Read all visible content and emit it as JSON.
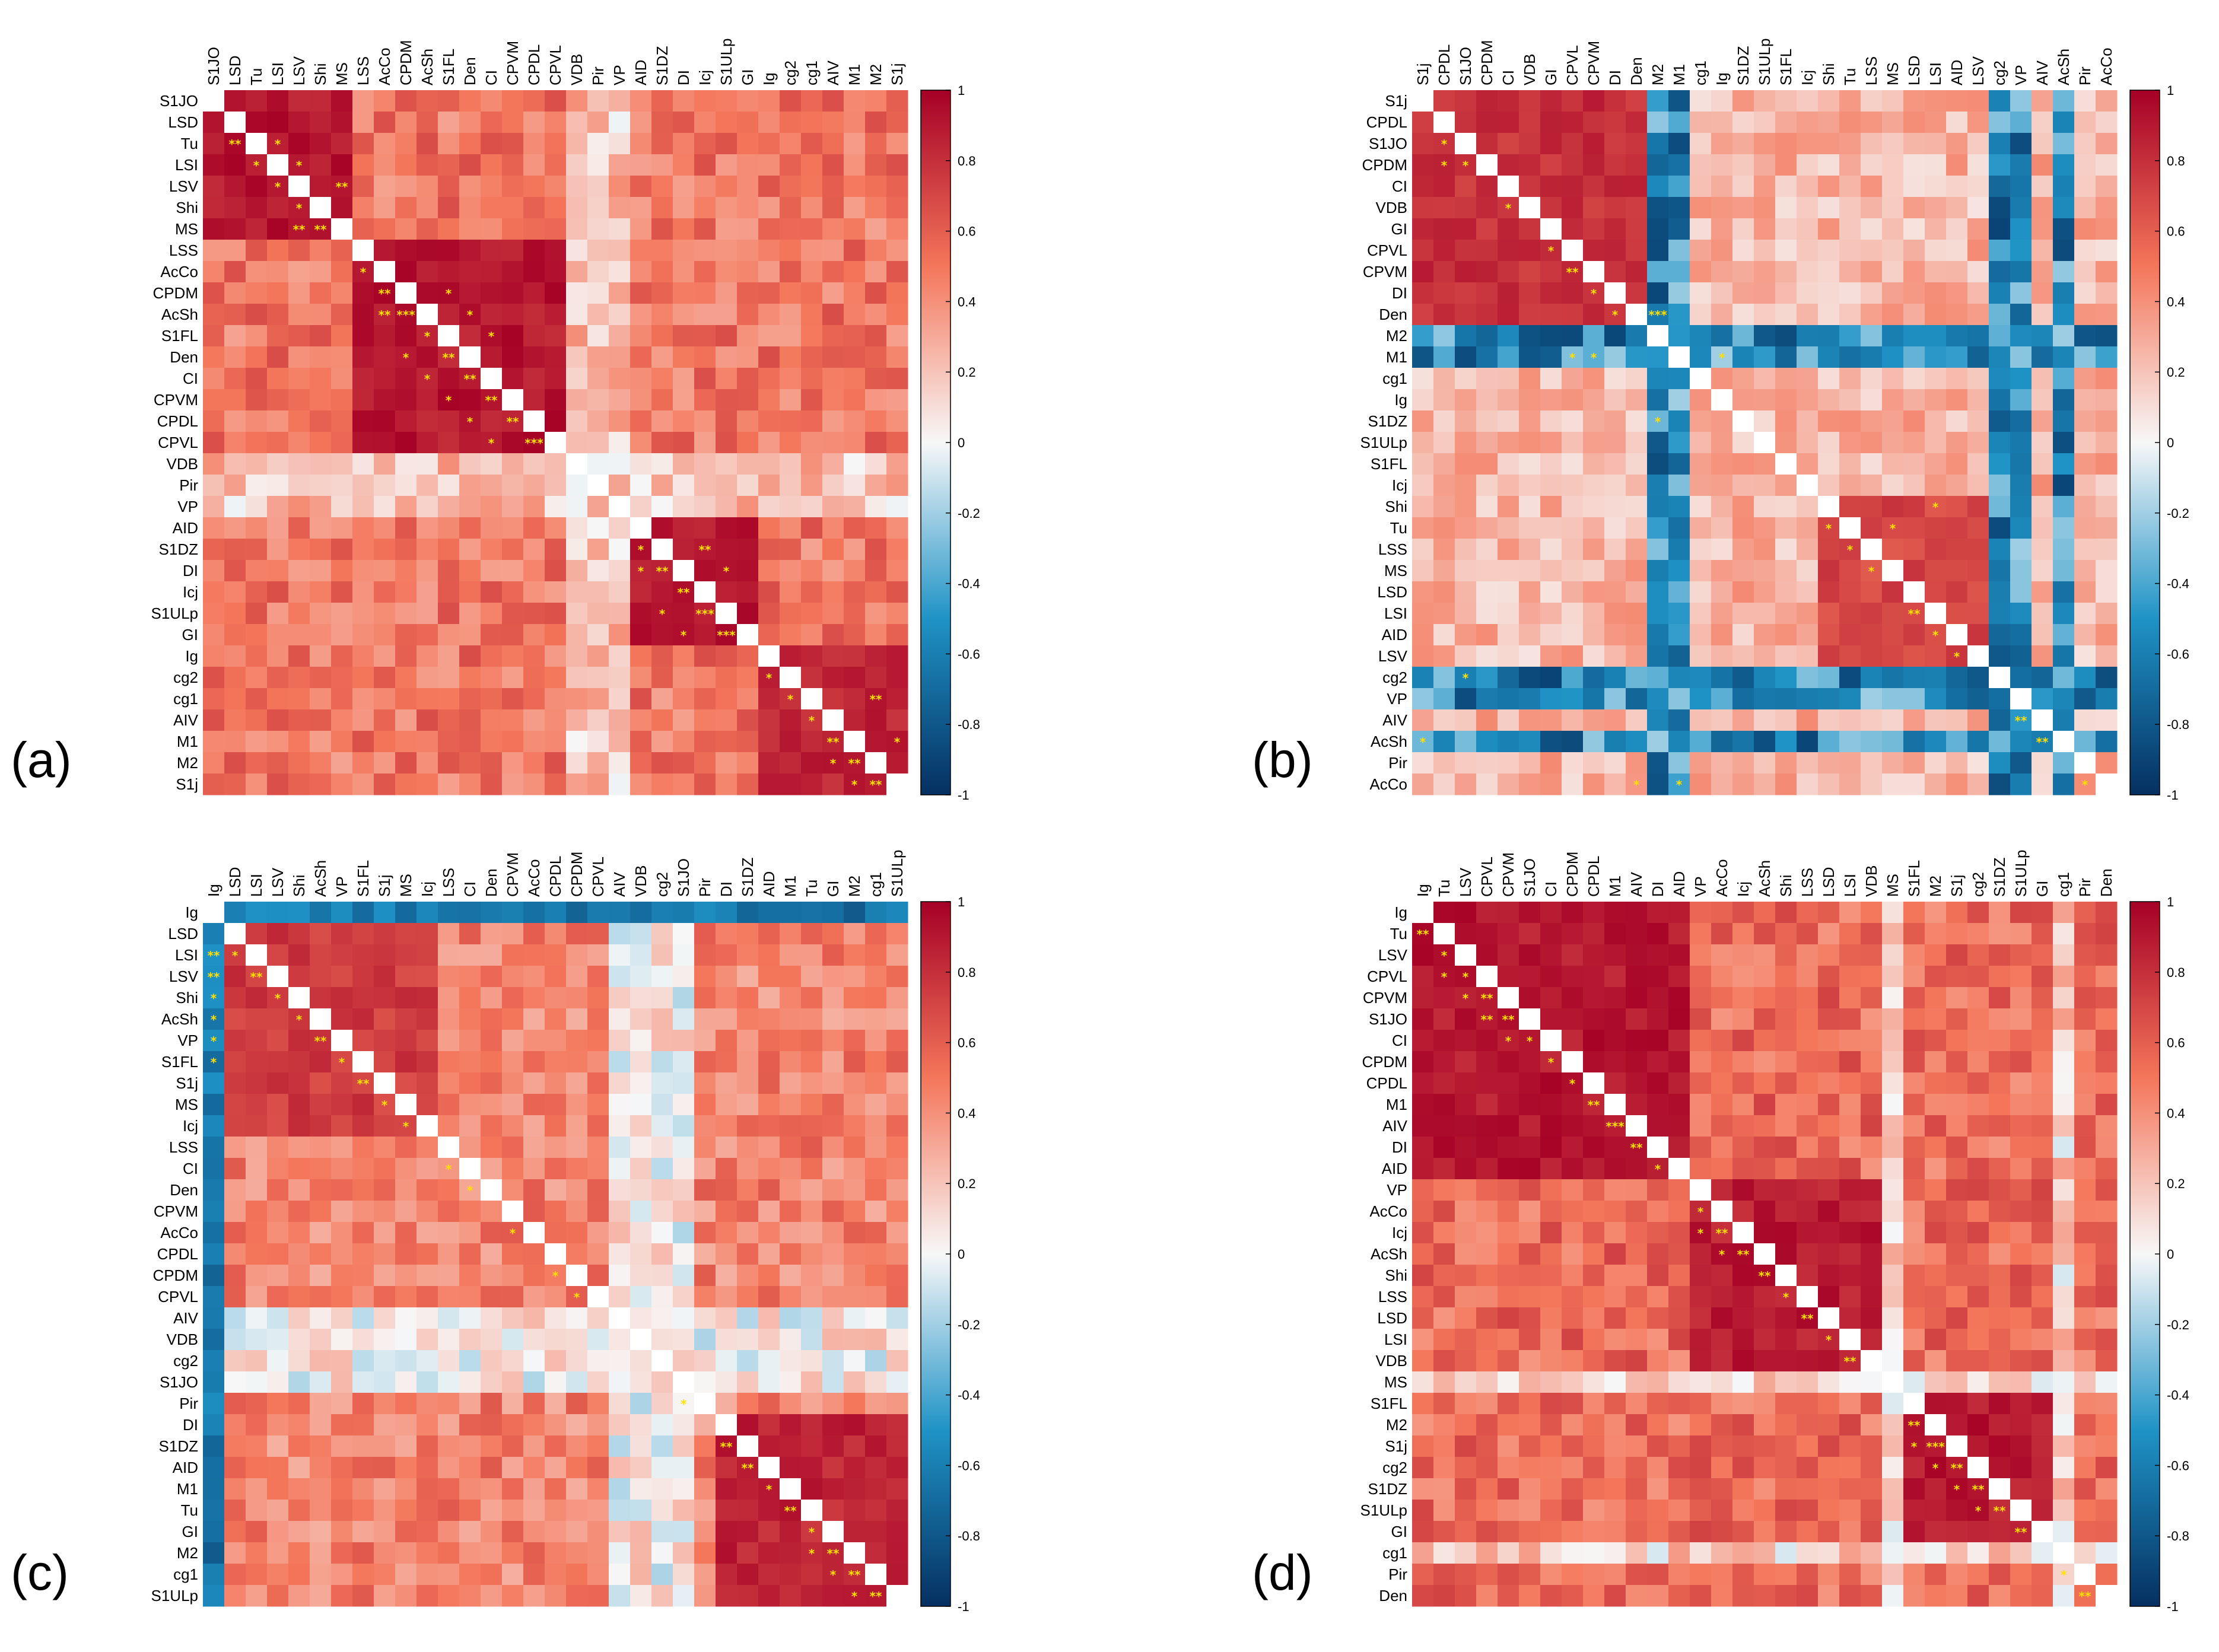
{
  "colors": {
    "neg_end": "#053061",
    "neg_mid": "#1f93c6",
    "zero": "#f7f7f7",
    "pos_mid": "#f4765a",
    "pos_end": "#a50026",
    "star": "#ffe000",
    "diag": "#ffffff"
  },
  "chart_data": [
    {
      "panel_label": "(a)",
      "type": "heatmap",
      "colorbar": {
        "min": -1,
        "max": 1,
        "ticks": [
          "1",
          "0.8",
          "0.6",
          "0.4",
          "0.2",
          "0",
          "-0.2",
          "-0.4",
          "-0.6",
          "-0.8",
          "-1"
        ]
      },
      "labels": [
        "S1JO",
        "LSD",
        "Tu",
        "LSI",
        "LSV",
        "Shi",
        "MS",
        "LSS",
        "AcCo",
        "CPDM",
        "AcSh",
        "S1FL",
        "Den",
        "CI",
        "CPVM",
        "CPDL",
        "CPVL",
        "VDB",
        "Pir",
        "VP",
        "AID",
        "S1DZ",
        "DI",
        "Icj",
        "S1ULp",
        "GI",
        "Ig",
        "cg2",
        "cg1",
        "AIV",
        "M1",
        "M2",
        "S1j"
      ],
      "blocks": [
        {
          "rows": [
            0,
            6
          ],
          "cols": [
            0,
            6
          ],
          "value": 0.9
        },
        {
          "rows": [
            7,
            16
          ],
          "cols": [
            7,
            16
          ],
          "value": 0.9
        },
        {
          "rows": [
            20,
            25
          ],
          "cols": [
            20,
            25
          ],
          "value": 0.92
        },
        {
          "rows": [
            26,
            32
          ],
          "cols": [
            26,
            32
          ],
          "value": 0.85
        }
      ],
      "background_value": 0.5,
      "weak_rows": [
        17,
        18,
        19
      ],
      "weak_value": 0.2,
      "stars": [
        [
          2,
          1,
          "**"
        ],
        [
          3,
          2,
          "*"
        ],
        [
          4,
          3,
          "*"
        ],
        [
          5,
          4,
          "*"
        ],
        [
          6,
          5,
          "**"
        ],
        [
          6,
          4,
          "**"
        ],
        [
          4,
          6,
          "**"
        ],
        [
          3,
          4,
          "*"
        ],
        [
          2,
          3,
          "*"
        ],
        [
          8,
          7,
          "*"
        ],
        [
          9,
          8,
          "**"
        ],
        [
          10,
          9,
          "***"
        ],
        [
          10,
          8,
          "**"
        ],
        [
          11,
          10,
          "*"
        ],
        [
          12,
          11,
          "**"
        ],
        [
          13,
          12,
          "**"
        ],
        [
          14,
          13,
          "**"
        ],
        [
          15,
          14,
          "**"
        ],
        [
          16,
          15,
          "***"
        ],
        [
          12,
          9,
          "*"
        ],
        [
          13,
          10,
          "*"
        ],
        [
          14,
          11,
          "*"
        ],
        [
          15,
          12,
          "*"
        ],
        [
          16,
          13,
          "*"
        ],
        [
          9,
          11,
          "*"
        ],
        [
          10,
          12,
          "*"
        ],
        [
          11,
          13,
          "*"
        ],
        [
          21,
          20,
          "*"
        ],
        [
          22,
          21,
          "**"
        ],
        [
          23,
          22,
          "**"
        ],
        [
          24,
          23,
          "***"
        ],
        [
          25,
          24,
          "***"
        ],
        [
          22,
          20,
          "*"
        ],
        [
          24,
          21,
          "*"
        ],
        [
          25,
          22,
          "*"
        ],
        [
          21,
          23,
          "**"
        ],
        [
          22,
          24,
          "*"
        ],
        [
          27,
          26,
          "*"
        ],
        [
          28,
          27,
          "*"
        ],
        [
          29,
          28,
          "*"
        ],
        [
          30,
          29,
          "**"
        ],
        [
          31,
          30,
          "**"
        ],
        [
          32,
          31,
          "**"
        ],
        [
          31,
          29,
          "*"
        ],
        [
          32,
          30,
          "*"
        ],
        [
          30,
          32,
          "*"
        ],
        [
          28,
          31,
          "**"
        ]
      ]
    },
    {
      "panel_label": "(b)",
      "type": "heatmap",
      "colorbar": {
        "min": -1,
        "max": 1,
        "ticks": [
          "1",
          "0.8",
          "0.6",
          "0.4",
          "0.2",
          "0",
          "-0.2",
          "-0.4",
          "-0.6",
          "-0.8",
          "-1"
        ]
      },
      "labels": [
        "S1j",
        "CPDL",
        "S1JO",
        "CPDM",
        "CI",
        "VDB",
        "GI",
        "CPVL",
        "CPVM",
        "DI",
        "Den",
        "M2",
        "M1",
        "cg1",
        "Ig",
        "S1DZ",
        "S1ULp",
        "S1FL",
        "Icj",
        "Shi",
        "Tu",
        "LSS",
        "MS",
        "LSD",
        "LSI",
        "AID",
        "LSV",
        "cg2",
        "VP",
        "AIV",
        "AcSh",
        "Pir",
        "AcCo"
      ],
      "blocks": [
        {
          "rows": [
            0,
            10
          ],
          "cols": [
            0,
            10
          ],
          "value": 0.8
        },
        {
          "rows": [
            19,
            26
          ],
          "cols": [
            19,
            26
          ],
          "value": 0.7
        }
      ],
      "background_value": 0.25,
      "neg_cols": [
        11,
        12,
        27,
        28,
        30
      ],
      "neg_value": -0.55,
      "stars": [
        [
          2,
          1,
          "*"
        ],
        [
          3,
          2,
          "*"
        ],
        [
          3,
          1,
          "*"
        ],
        [
          5,
          4,
          "*"
        ],
        [
          7,
          6,
          "*"
        ],
        [
          8,
          7,
          "**"
        ],
        [
          9,
          8,
          "*"
        ],
        [
          10,
          9,
          "*"
        ],
        [
          10,
          11,
          "***"
        ],
        [
          12,
          7,
          "*"
        ],
        [
          12,
          8,
          "*"
        ],
        [
          12,
          14,
          "*"
        ],
        [
          15,
          11,
          "*"
        ],
        [
          20,
          19,
          "*"
        ],
        [
          21,
          20,
          "*"
        ],
        [
          22,
          21,
          "*"
        ],
        [
          24,
          23,
          "**"
        ],
        [
          25,
          24,
          "*"
        ],
        [
          26,
          25,
          "*"
        ],
        [
          20,
          22,
          "*"
        ],
        [
          19,
          24,
          "*"
        ],
        [
          27,
          2,
          "*"
        ],
        [
          29,
          28,
          "**"
        ],
        [
          30,
          29,
          "**"
        ],
        [
          32,
          31,
          "*"
        ],
        [
          32,
          10,
          "*"
        ],
        [
          32,
          12,
          "*"
        ],
        [
          30,
          0,
          "*"
        ]
      ]
    },
    {
      "panel_label": "(c)",
      "type": "heatmap",
      "colorbar": {
        "min": -1,
        "max": 1,
        "ticks": [
          "1",
          "0.8",
          "0.6",
          "0.4",
          "0.2",
          "0",
          "-0.2",
          "-0.4",
          "-0.6",
          "-0.8",
          "-1"
        ]
      },
      "labels": [
        "Ig",
        "LSD",
        "LSI",
        "LSV",
        "Shi",
        "AcSh",
        "VP",
        "S1FL",
        "S1j",
        "MS",
        "Icj",
        "LSS",
        "CI",
        "Den",
        "CPVM",
        "AcCo",
        "CPDL",
        "CPDM",
        "CPVL",
        "AIV",
        "VDB",
        "cg2",
        "S1JO",
        "Pir",
        "DI",
        "S1DZ",
        "AID",
        "M1",
        "Tu",
        "GI",
        "M2",
        "cg1",
        "S1ULp"
      ],
      "blocks": [
        {
          "rows": [
            1,
            10
          ],
          "cols": [
            1,
            10
          ],
          "value": 0.75
        },
        {
          "rows": [
            24,
            32
          ],
          "cols": [
            24,
            32
          ],
          "value": 0.85
        }
      ],
      "background_value": 0.45,
      "neg_rows": [
        0
      ],
      "neg_value": -0.65,
      "weak_rows": [
        19,
        20,
        21,
        22
      ],
      "weak_value": 0.05,
      "stars": [
        [
          2,
          1,
          "*"
        ],
        [
          3,
          2,
          "**"
        ],
        [
          4,
          3,
          "*"
        ],
        [
          5,
          4,
          "*"
        ],
        [
          6,
          5,
          "**"
        ],
        [
          7,
          6,
          "*"
        ],
        [
          8,
          7,
          "**"
        ],
        [
          9,
          8,
          "*"
        ],
        [
          10,
          9,
          "*"
        ],
        [
          2,
          0,
          "**"
        ],
        [
          3,
          0,
          "**"
        ],
        [
          4,
          0,
          "*"
        ],
        [
          5,
          0,
          "*"
        ],
        [
          6,
          0,
          "*"
        ],
        [
          7,
          0,
          "*"
        ],
        [
          12,
          11,
          "*"
        ],
        [
          13,
          12,
          "*"
        ],
        [
          15,
          14,
          "*"
        ],
        [
          17,
          16,
          "*"
        ],
        [
          18,
          17,
          "*"
        ],
        [
          23,
          22,
          "*"
        ],
        [
          25,
          24,
          "**"
        ],
        [
          26,
          25,
          "**"
        ],
        [
          27,
          26,
          "*"
        ],
        [
          28,
          27,
          "**"
        ],
        [
          29,
          28,
          "*"
        ],
        [
          30,
          29,
          "**"
        ],
        [
          31,
          30,
          "**"
        ],
        [
          32,
          31,
          "**"
        ],
        [
          30,
          28,
          "*"
        ],
        [
          31,
          29,
          "*"
        ],
        [
          32,
          30,
          "*"
        ]
      ]
    },
    {
      "panel_label": "(d)",
      "type": "heatmap",
      "colorbar": {
        "min": -1,
        "max": 1,
        "ticks": [
          "1",
          "0.8",
          "0.6",
          "0.4",
          "0.2",
          "0",
          "-0.2",
          "-0.4",
          "-0.6",
          "-0.8",
          "-1"
        ]
      },
      "labels": [
        "Ig",
        "Tu",
        "LSV",
        "CPVL",
        "CPVM",
        "S1JO",
        "CI",
        "CPDM",
        "CPDL",
        "M1",
        "AIV",
        "DI",
        "AID",
        "VP",
        "AcCo",
        "Icj",
        "AcSh",
        "Shi",
        "LSS",
        "LSD",
        "LSI",
        "VDB",
        "MS",
        "S1FL",
        "M2",
        "S1j",
        "cg2",
        "S1DZ",
        "S1ULp",
        "GI",
        "cg1",
        "Pir",
        "Den"
      ],
      "blocks": [
        {
          "rows": [
            0,
            12
          ],
          "cols": [
            0,
            12
          ],
          "value": 0.9
        },
        {
          "rows": [
            13,
            21
          ],
          "cols": [
            13,
            21
          ],
          "value": 0.88
        },
        {
          "rows": [
            23,
            29
          ],
          "cols": [
            23,
            29
          ],
          "value": 0.9
        }
      ],
      "background_value": 0.55,
      "weak_rows": [
        22,
        30
      ],
      "weak_value": 0.15,
      "stars": [
        [
          1,
          0,
          "**"
        ],
        [
          2,
          1,
          "*"
        ],
        [
          3,
          2,
          "*"
        ],
        [
          4,
          3,
          "**"
        ],
        [
          5,
          4,
          "**"
        ],
        [
          6,
          5,
          "*"
        ],
        [
          7,
          6,
          "*"
        ],
        [
          8,
          7,
          "*"
        ],
        [
          9,
          8,
          "**"
        ],
        [
          10,
          9,
          "***"
        ],
        [
          11,
          10,
          "**"
        ],
        [
          12,
          11,
          "*"
        ],
        [
          3,
          1,
          "*"
        ],
        [
          4,
          2,
          "*"
        ],
        [
          5,
          3,
          "**"
        ],
        [
          6,
          4,
          "*"
        ],
        [
          14,
          13,
          "*"
        ],
        [
          15,
          14,
          "**"
        ],
        [
          16,
          15,
          "**"
        ],
        [
          17,
          16,
          "**"
        ],
        [
          18,
          17,
          "*"
        ],
        [
          19,
          18,
          "**"
        ],
        [
          20,
          19,
          "*"
        ],
        [
          21,
          20,
          "**"
        ],
        [
          15,
          13,
          "*"
        ],
        [
          16,
          14,
          "*"
        ],
        [
          24,
          23,
          "**"
        ],
        [
          25,
          24,
          "***"
        ],
        [
          26,
          25,
          "**"
        ],
        [
          27,
          26,
          "**"
        ],
        [
          28,
          27,
          "**"
        ],
        [
          29,
          28,
          "**"
        ],
        [
          25,
          23,
          "*"
        ],
        [
          26,
          24,
          "*"
        ],
        [
          27,
          25,
          "*"
        ],
        [
          28,
          26,
          "*"
        ],
        [
          31,
          30,
          "*"
        ],
        [
          32,
          31,
          "**"
        ]
      ]
    }
  ]
}
